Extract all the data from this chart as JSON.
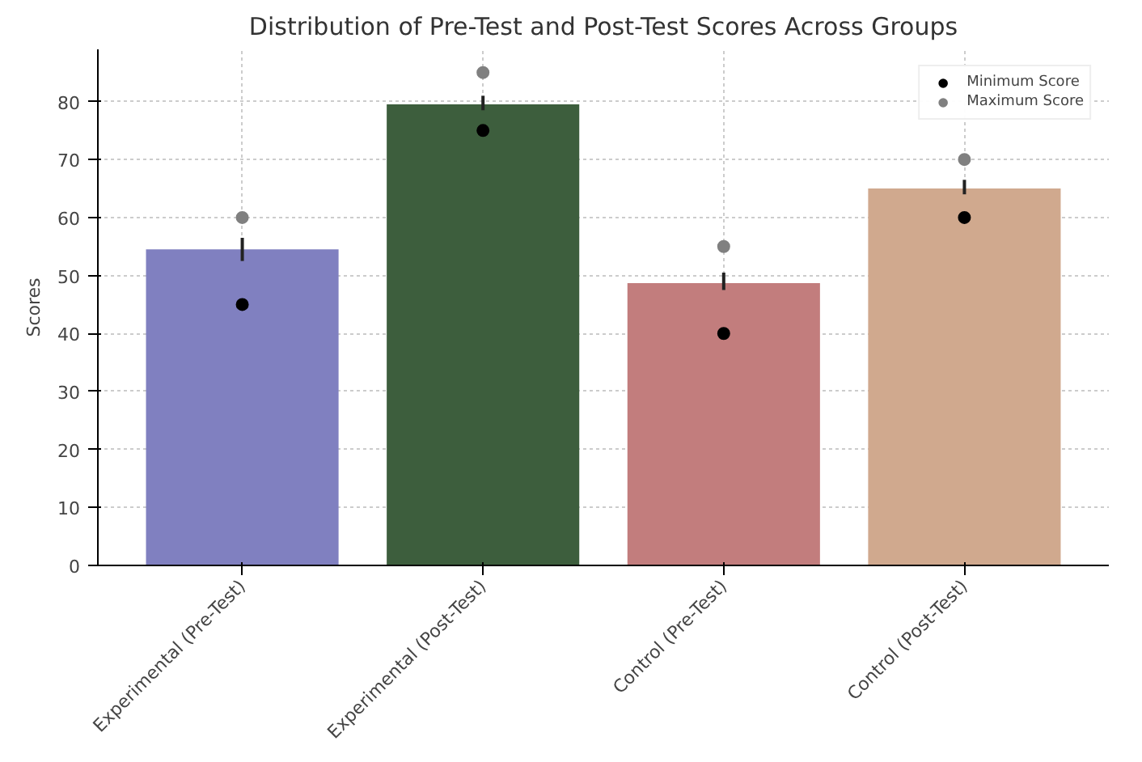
{
  "chart_data": {
    "type": "bar",
    "title": "Distribution of Pre-Test and Post-Test Scores Across Groups",
    "ylabel": "Scores",
    "categories": [
      "Experimental (Pre-Test)",
      "Experimental (Post-Test)",
      "Control (Pre-Test)",
      "Control (Post-Test)"
    ],
    "series": [
      {
        "colors": [
          "#8080c0",
          "#3d5e3d",
          "#c27d7d",
          "#d0a98e"
        ],
        "values": [
          54.5,
          79.5,
          48.7,
          65
        ],
        "errors": [
          [
            52.5,
            56.5
          ],
          [
            78.5,
            81
          ],
          [
            47.5,
            50.5
          ],
          [
            64,
            66.5
          ]
        ]
      },
      {
        "type": "scatter",
        "name": "Minimum Score",
        "color": "#000000",
        "x": [
          "Experimental (Pre-Test)",
          "Experimental (Post-Test)",
          "Control (Pre-Test)",
          "Control (Post-Test)"
        ],
        "values": [
          45,
          75,
          40,
          60
        ]
      },
      {
        "type": "scatter",
        "name": "Maximum Score",
        "color": "#808080",
        "x": [
          "Experimental (Pre-Test)",
          "Experimental (Post-Test)",
          "Control (Pre-Test)",
          "Control (Post-Test)"
        ],
        "values": [
          60,
          85,
          55,
          70
        ]
      }
    ],
    "ylim": [
      0,
      89
    ],
    "yticks": [
      0,
      10,
      20,
      30,
      40,
      50,
      60,
      70,
      80
    ],
    "grid": true,
    "legend": "top right",
    "marker": "circle"
  }
}
